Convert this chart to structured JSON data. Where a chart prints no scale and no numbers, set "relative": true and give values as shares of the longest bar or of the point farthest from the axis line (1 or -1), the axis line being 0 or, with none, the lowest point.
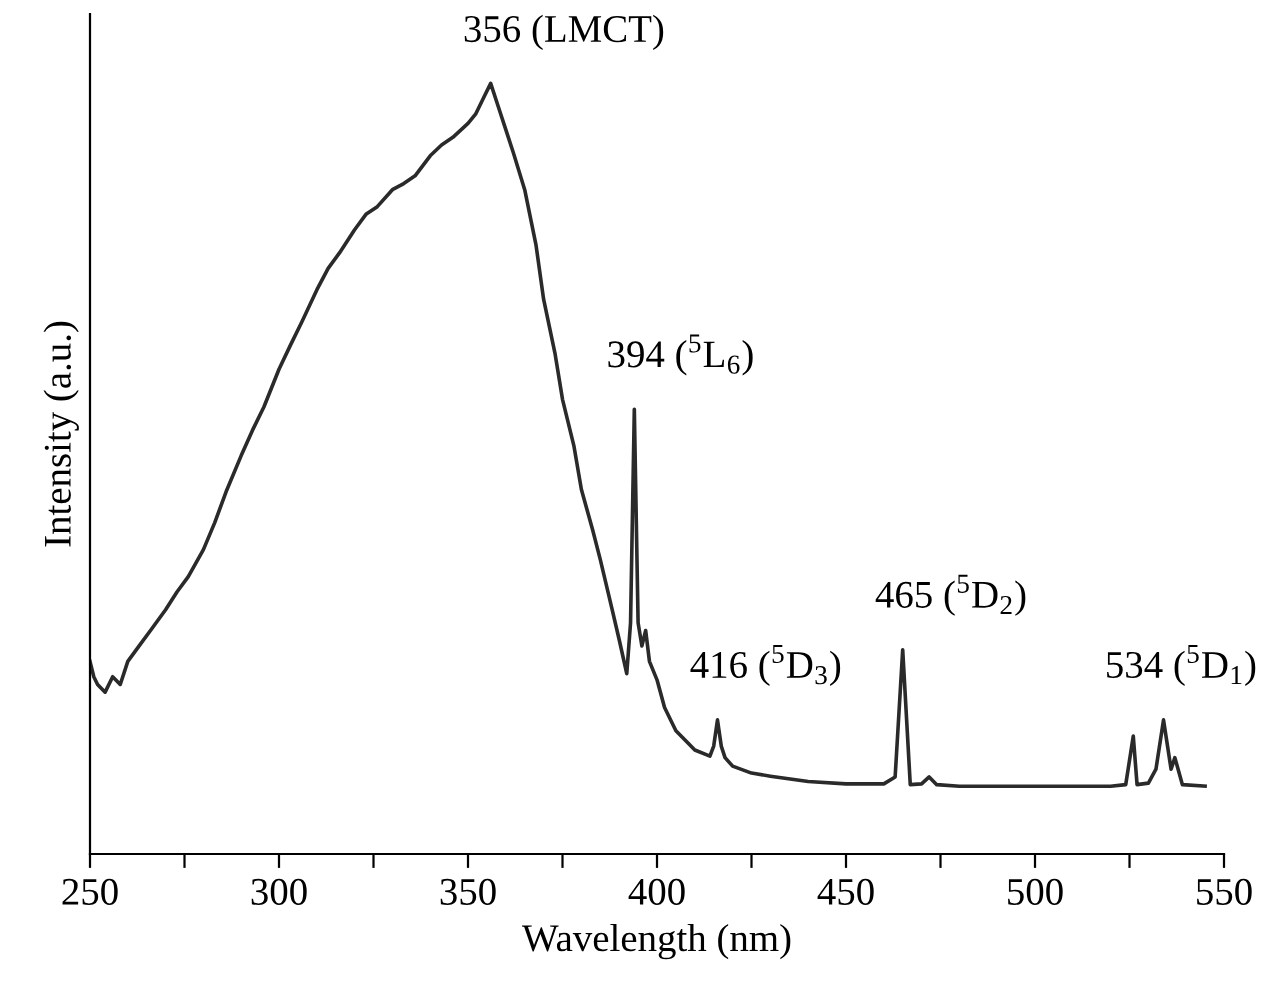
{
  "chart_data": {
    "type": "line",
    "xlabel": "Wavelength (nm)",
    "ylabel": "Intensity (a.u.)",
    "relative": true,
    "tick_labels": "x",
    "grid": false,
    "legend": false,
    "marker": "none",
    "line_style": "solid",
    "xlim": [
      250,
      550
    ],
    "xticks": [
      250,
      {
        "value": 275,
        "label": null
      },
      300,
      {
        "value": 325,
        "label": null
      },
      350,
      {
        "value": 375,
        "label": null
      },
      400,
      {
        "value": 425,
        "label": null
      },
      450,
      {
        "value": 475,
        "label": null
      },
      500,
      {
        "value": 525,
        "label": null
      },
      550
    ],
    "series": [
      {
        "color": "#2a2a2a",
        "x": [
          250,
          251,
          252,
          254,
          256,
          258,
          260,
          263,
          266,
          270,
          273,
          276,
          280,
          283,
          286,
          290,
          293,
          296,
          300,
          303,
          306,
          310,
          313,
          316,
          320,
          323,
          326,
          330,
          333,
          336,
          340,
          343,
          346,
          350,
          352,
          354,
          356,
          358,
          360,
          362,
          365,
          368,
          370,
          373,
          375,
          378,
          380,
          383,
          385,
          388,
          390,
          392,
          393,
          394,
          395,
          396,
          397,
          398,
          400,
          402,
          405,
          408,
          410,
          414,
          415,
          416,
          417,
          418,
          420,
          425,
          430,
          440,
          450,
          460,
          463,
          465,
          467,
          470,
          472,
          474,
          480,
          490,
          500,
          510,
          520,
          524,
          526,
          527,
          530,
          532,
          534,
          536,
          537,
          539,
          545
        ],
        "values": [
          0.25,
          0.23,
          0.22,
          0.21,
          0.23,
          0.22,
          0.25,
          0.27,
          0.29,
          0.317,
          0.34,
          0.36,
          0.395,
          0.43,
          0.47,
          0.517,
          0.55,
          0.58,
          0.629,
          0.66,
          0.69,
          0.732,
          0.76,
          0.78,
          0.81,
          0.83,
          0.84,
          0.862,
          0.87,
          0.88,
          0.906,
          0.92,
          0.93,
          0.948,
          0.96,
          0.98,
          1.0,
          0.97,
          0.94,
          0.91,
          0.862,
          0.79,
          0.72,
          0.65,
          0.59,
          0.53,
          0.473,
          0.42,
          0.382,
          0.32,
          0.278,
          0.234,
          0.3,
          0.577,
          0.3,
          0.27,
          0.29,
          0.25,
          0.226,
          0.19,
          0.16,
          0.145,
          0.135,
          0.127,
          0.14,
          0.174,
          0.14,
          0.125,
          0.114,
          0.105,
          0.101,
          0.094,
          0.091,
          0.091,
          0.1,
          0.265,
          0.09,
          0.091,
          0.1,
          0.09,
          0.088,
          0.088,
          0.088,
          0.088,
          0.088,
          0.09,
          0.153,
          0.09,
          0.092,
          0.11,
          0.174,
          0.11,
          0.125,
          0.09,
          0.088
        ]
      }
    ],
    "annotations": [
      {
        "text": "356 (LMCT)",
        "x": 356,
        "y": 1.0
      },
      {
        "text": "394 ($^{5}$L$_{6}$)",
        "x": 394,
        "y": 0.577
      },
      {
        "text": "416 ($^{5}$D$_{3}$)",
        "x": 416,
        "y": 0.174
      },
      {
        "text": "465 ($^{5}$D$_{2}$)",
        "x": 465,
        "y": 0.265
      },
      {
        "text": "534 ($^{5}$D$_{1}$)",
        "x": 534,
        "y": 0.174
      }
    ]
  }
}
